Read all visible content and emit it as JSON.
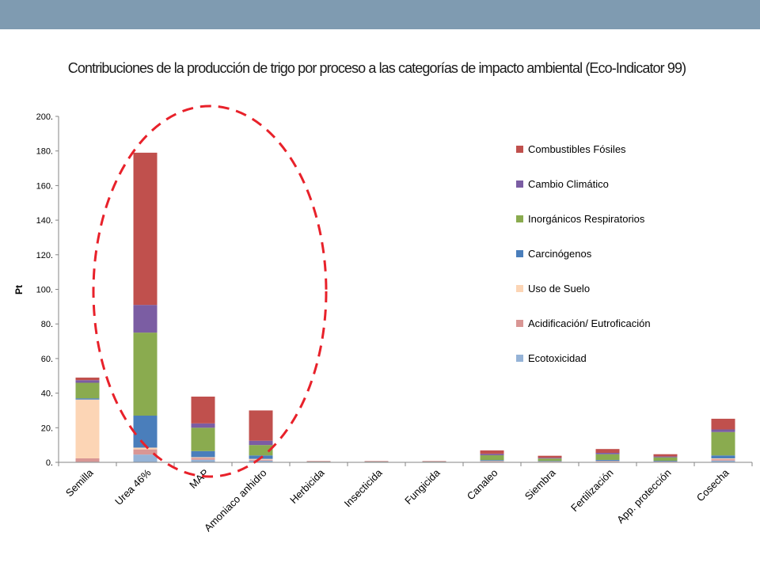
{
  "slide": {
    "title": "Contribuciones de la producción de trigo por proceso a las categorías de impacto ambiental (Eco-Indicator 99)",
    "banner_color": "#7f9bb1"
  },
  "chart_data": {
    "type": "bar",
    "stacked": true,
    "title": "",
    "xlabel": "",
    "ylabel": "Pt",
    "ylim": [
      0,
      200
    ],
    "yticks": [
      0,
      20,
      40,
      60,
      80,
      100,
      120,
      140,
      160,
      180,
      200
    ],
    "ytick_labels": [
      "0.",
      "20.",
      "40.",
      "60.",
      "80.",
      "100.",
      "120.",
      "140.",
      "160.",
      "180.",
      "200."
    ],
    "grid": false,
    "legend_position": "right",
    "categories": [
      "Semilla",
      "Urea 46%",
      "MAP",
      "Amoniaco anhidro",
      "Herbicida",
      "Insecticida",
      "Fungicida",
      "Canaleo",
      "Siembra",
      "Fertilización",
      "App. protección",
      "Cosecha"
    ],
    "series": [
      {
        "name": "Ecotoxicidad",
        "color": "#95b3d7",
        "values": [
          0.3,
          4.5,
          1.5,
          1.0,
          0.1,
          0.1,
          0.1,
          0.3,
          0.2,
          0.3,
          0.2,
          1.0
        ]
      },
      {
        "name": "Acidificación/ Eutroficación",
        "color": "#d99694",
        "values": [
          2.0,
          3.0,
          1.0,
          0.5,
          0.1,
          0.1,
          0.1,
          0.3,
          0.2,
          0.3,
          0.2,
          0.8
        ]
      },
      {
        "name": "Uso de Suelo",
        "color": "#fcd5b5",
        "values": [
          34.0,
          1.0,
          0.5,
          0.5,
          0.0,
          0.0,
          0.0,
          0.2,
          0.1,
          0.2,
          0.1,
          0.5
        ]
      },
      {
        "name": "Carcinógenos",
        "color": "#4a7ebb",
        "values": [
          0.7,
          18.5,
          3.5,
          2.0,
          0.1,
          0.1,
          0.1,
          0.5,
          0.3,
          0.6,
          0.4,
          1.7
        ]
      },
      {
        "name": "Inorgánicos Respiratorios",
        "color": "#8aab4f",
        "values": [
          9.0,
          48.0,
          13.5,
          6.0,
          0.1,
          0.1,
          0.1,
          2.8,
          1.4,
          3.3,
          2.0,
          13.5
        ]
      },
      {
        "name": "Cambio Climático",
        "color": "#7b5da3",
        "values": [
          1.5,
          16.0,
          2.5,
          2.5,
          0.1,
          0.1,
          0.1,
          0.8,
          0.4,
          0.8,
          0.5,
          1.5
        ]
      },
      {
        "name": "Combustibles Fósiles",
        "color": "#c0504d",
        "values": [
          1.5,
          88.0,
          15.5,
          17.5,
          0.2,
          0.2,
          0.2,
          2.0,
          1.2,
          2.2,
          1.3,
          6.2
        ]
      }
    ],
    "legend_order": [
      "Combustibles Fósiles",
      "Cambio Climático",
      "Inorgánicos Respiratorios",
      "Carcinógenos",
      "Uso de Suelo",
      "Acidificación/ Eutroficación",
      "Ecotoxicidad"
    ],
    "annotation": {
      "shape": "dashed-ellipse",
      "color": "#e8212a",
      "encloses": [
        "Urea 46%",
        "MAP",
        "Amoniaco anhidro"
      ]
    }
  }
}
